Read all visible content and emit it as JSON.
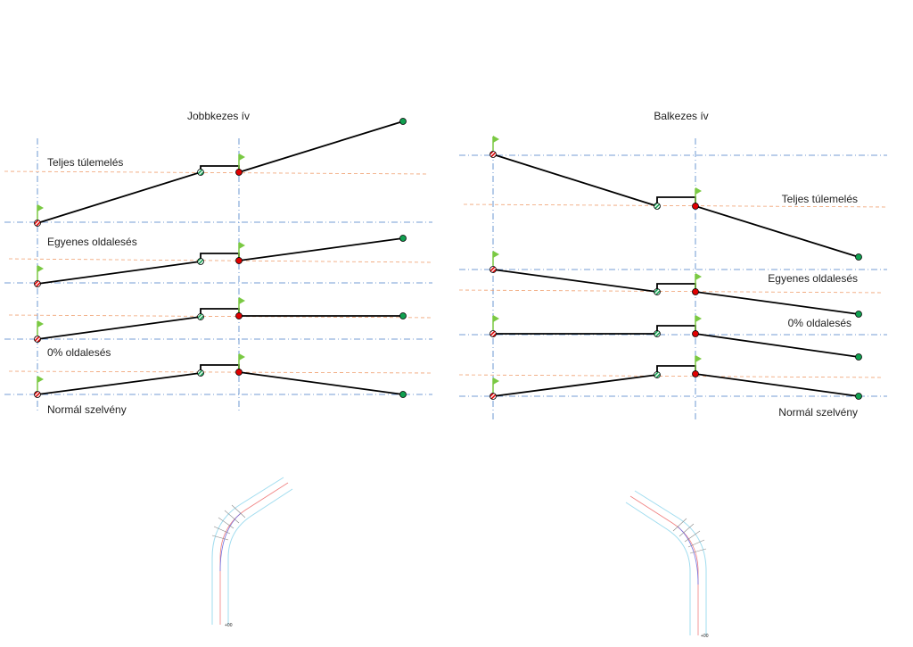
{
  "left": {
    "title": "Jobbkezes ív",
    "labels": [
      "Teljes túlemelés",
      "Egyenes oldalesés",
      "0% oldalesés",
      "Normál szelvény"
    ]
  },
  "right": {
    "title": "Balkezes ív",
    "labels": [
      "Teljes túlemelés",
      "Egyenes oldalesés",
      "0% oldalesés",
      "Normál szelvény"
    ]
  },
  "colors": {
    "axis_blue": "#4a7fc8",
    "reference_orange": "#f0a070",
    "profile_line": "#000000",
    "point_red": "#e00000",
    "point_green": "#10a050",
    "flag_green": "#7ac943",
    "road_edge": "#9fdcef",
    "centerline": "#f08080",
    "curve_centerline": "#7070e0"
  }
}
